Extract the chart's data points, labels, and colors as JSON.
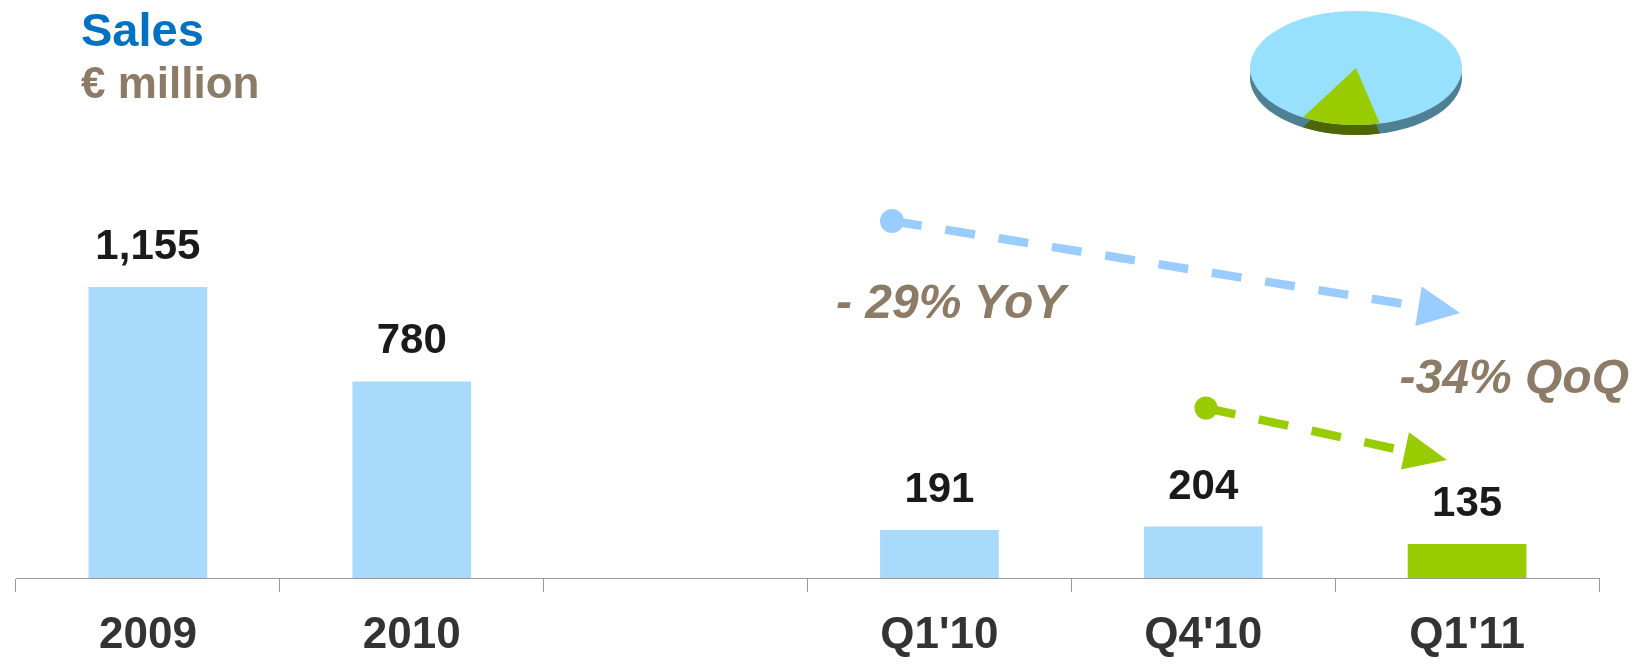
{
  "chart_data": {
    "type": "bar",
    "title": "Sales",
    "subtitle": "€ million",
    "categories": [
      "2009",
      "2010",
      null,
      "Q1'10",
      "Q4'10",
      "Q1'11"
    ],
    "values": [
      1155,
      780,
      null,
      191,
      204,
      135
    ],
    "colors": [
      "#a8dafc",
      "#a8dafc",
      "#a8dafc",
      "#a8dafc",
      "#a8dafc",
      "#99cc00"
    ],
    "value_labels": [
      "1,155",
      "780",
      null,
      "191",
      "204",
      "135"
    ],
    "annotations": [
      "- 29% YoY",
      "-34% QoQ"
    ],
    "grid": false,
    "legend": false
  }
}
